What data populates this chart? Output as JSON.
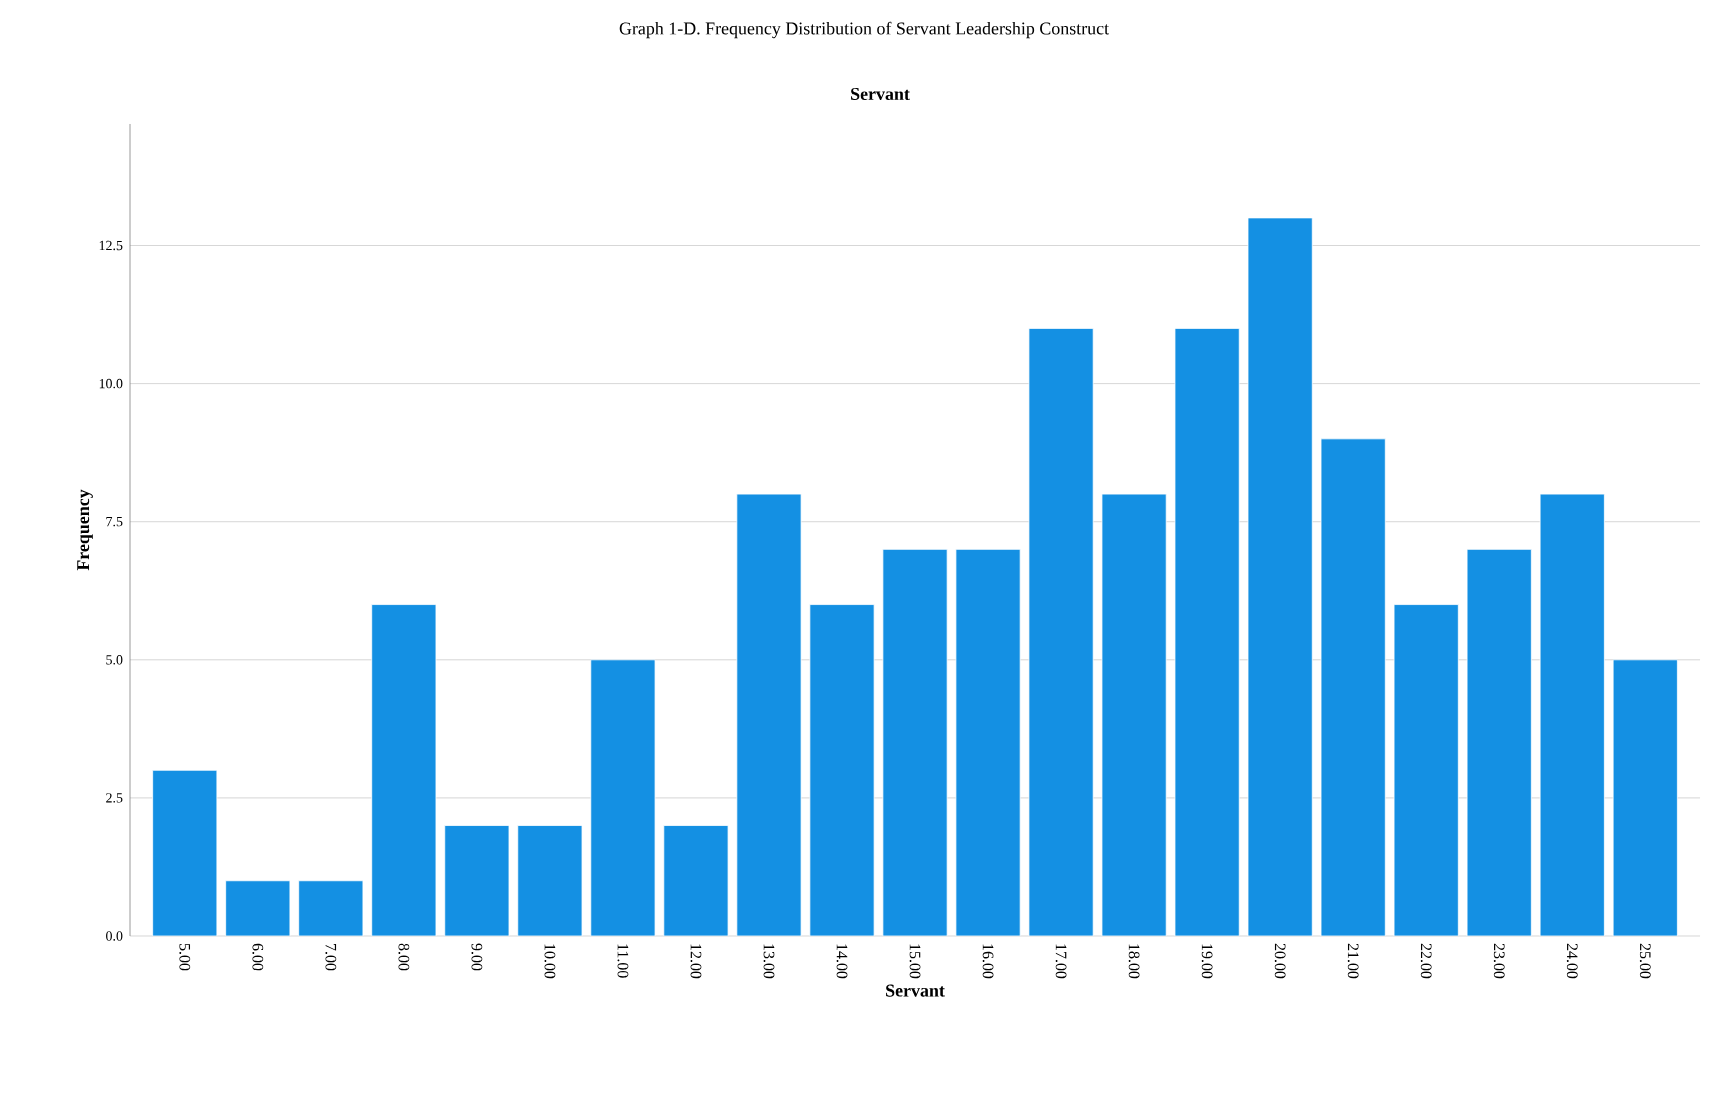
{
  "chart_data": {
    "type": "bar",
    "title": "Graph 1-D. Frequency Distribution of Servant Leadership Construct",
    "subtitle": "Servant",
    "xlabel": "Servant",
    "ylabel": "Frequency",
    "categories": [
      "5.00",
      "6.00",
      "7.00",
      "8.00",
      "9.00",
      "10.00",
      "11.00",
      "12.00",
      "13.00",
      "14.00",
      "15.00",
      "16.00",
      "17.00",
      "18.00",
      "19.00",
      "20.00",
      "21.00",
      "22.00",
      "23.00",
      "24.00",
      "25.00"
    ],
    "values": [
      3,
      1,
      1,
      6,
      2,
      2,
      5,
      2,
      8,
      6,
      7,
      7,
      11,
      8,
      11,
      13,
      9,
      6,
      7,
      8,
      5
    ],
    "color": "#1490e3",
    "ylim": [
      0,
      14.7
    ],
    "yticks": [
      {
        "value": 0,
        "label": "0.0"
      },
      {
        "value": 2.5,
        "label": "2.5"
      },
      {
        "value": 5,
        "label": "5.0"
      },
      {
        "value": 7.5,
        "label": "7.5"
      },
      {
        "value": 10,
        "label": "10.0"
      },
      {
        "value": 12.5,
        "label": "12.5"
      }
    ],
    "grid": "y"
  }
}
